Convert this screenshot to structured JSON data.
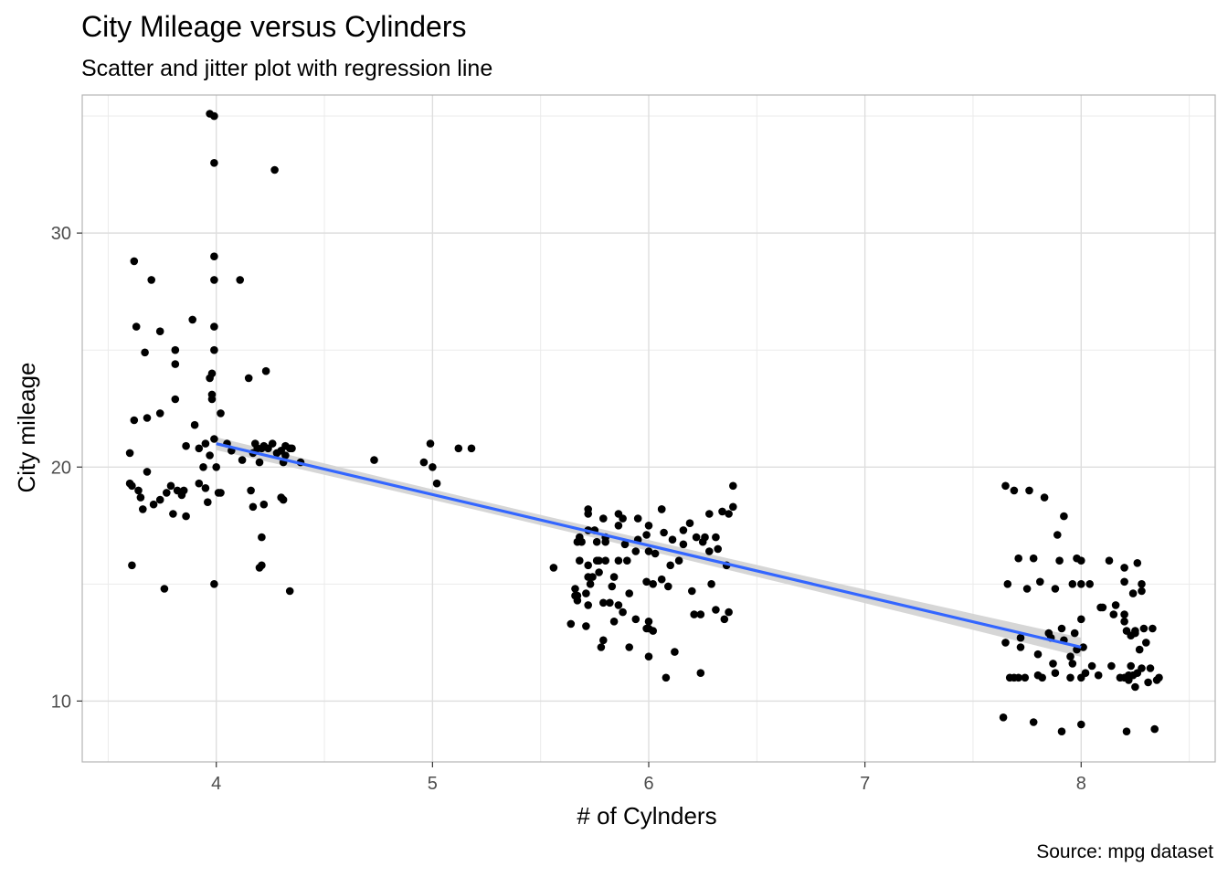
{
  "chart_data": {
    "type": "scatter",
    "title": "City Mileage versus Cylinders",
    "subtitle": "Scatter and jitter plot with regression line",
    "caption": "Source: mpg dataset",
    "xlabel": "# of Cylnders",
    "ylabel": "City mileage",
    "xlim": [
      3.38,
      8.62
    ],
    "ylim": [
      7.4,
      35.9
    ],
    "x_ticks": [
      4,
      5,
      6,
      7,
      8
    ],
    "y_ticks": [
      10,
      20,
      30
    ],
    "grid": true,
    "legend": "none",
    "colors": {
      "points": "#000000",
      "regression_line": "#3366ff",
      "confidence_band": "#d2d2d2",
      "grid": "#ebebeb",
      "panel_border": "#b3b3b3"
    },
    "regression": {
      "x": [
        4,
        8
      ],
      "y": [
        21.0,
        12.3
      ]
    },
    "points": {
      "x": [
        3.97,
        3.99,
        3.99,
        4.27,
        3.62,
        3.7,
        3.99,
        4.11,
        3.99,
        3.74,
        3.89,
        3.63,
        3.99,
        3.67,
        3.99,
        3.81,
        3.81,
        3.98,
        4.23,
        3.97,
        4.15,
        3.68,
        3.81,
        3.74,
        3.98,
        3.98,
        3.62,
        3.9,
        4.02,
        3.6,
        3.6,
        3.61,
        3.64,
        3.65,
        3.66,
        3.68,
        3.82,
        3.85,
        3.79,
        3.95,
        4.0,
        4.07,
        3.92,
        3.86,
        3.94,
        3.99,
        3.95,
        4.05,
        4.18,
        4.21,
        4.17,
        4.19,
        4.22,
        4.24,
        4.26,
        4.28,
        4.3,
        4.32,
        4.34,
        4.31,
        4.12,
        4.16,
        4.2,
        3.97,
        3.74,
        3.77,
        3.84,
        3.96,
        3.92,
        4.01,
        4.02,
        4.17,
        4.22,
        4.31,
        3.8,
        3.86,
        4.3,
        4.2,
        4.21,
        4.34,
        3.61,
        3.76,
        3.99,
        4.21,
        4.35,
        4.39,
        4.32,
        3.71,
        4.73,
        4.96,
        5.0,
        4.99,
        5.12,
        5.18,
        5.02,
        5.67,
        5.68,
        5.72,
        5.75,
        5.8,
        5.86,
        5.88,
        5.95,
        6.0,
        5.72,
        5.79,
        5.86,
        5.73,
        5.77,
        5.72,
        5.77,
        5.86,
        6.06,
        6.16,
        6.19,
        6.22,
        6.26,
        6.28,
        6.34,
        6.37,
        6.39,
        6.39,
        6.31,
        5.68,
        5.72,
        5.74,
        5.83,
        5.91,
        5.99,
        6.09,
        6.02,
        6.06,
        5.76,
        5.8,
        5.9,
        5.94,
        6.0,
        6.03,
        6.1,
        6.14,
        6.28,
        6.32,
        5.66,
        5.71,
        5.82,
        5.86,
        5.69,
        5.76,
        5.8,
        5.89,
        5.95,
        5.99,
        6.07,
        6.11,
        6.16,
        6.25,
        6.29,
        6.36,
        5.56,
        5.66,
        5.72,
        5.79,
        5.88,
        5.94,
        5.99,
        6.02,
        6.21,
        6.2,
        6.24,
        6.37,
        5.64,
        5.71,
        5.79,
        6.0,
        6.08,
        6.12,
        6.24,
        6.35,
        5.67,
        5.84,
        6.0,
        6.31,
        5.67,
        6.0,
        5.78,
        5.91,
        5.84,
        5.72,
        6.06,
        7.65,
        7.69,
        7.76,
        7.83,
        7.89,
        7.92,
        7.98,
        8.04,
        8.09,
        8.16,
        8.2,
        8.25,
        8.29,
        7.65,
        7.72,
        7.8,
        7.86,
        7.92,
        7.97,
        8.0,
        8.1,
        8.15,
        8.2,
        8.24,
        8.28,
        8.33,
        7.72,
        7.85,
        7.91,
        7.95,
        8.01,
        8.05,
        8.14,
        8.22,
        8.28,
        7.69,
        7.8,
        7.87,
        7.96,
        8.02,
        8.2,
        8.24,
        8.26,
        8.32,
        8.36,
        7.71,
        7.74,
        7.82,
        7.88,
        7.95,
        8.0,
        8.08,
        8.18,
        8.22,
        8.25,
        8.31,
        8.35,
        7.67,
        7.75,
        7.81,
        7.88,
        7.96,
        8.0,
        8.2,
        8.28,
        7.66,
        7.71,
        7.78,
        7.9,
        8.0,
        8.13,
        8.2,
        8.26,
        7.64,
        7.78,
        7.91,
        8.0,
        8.21,
        8.34,
        7.98,
        8.3,
        8.23,
        8.23,
        8.27,
        8.25,
        8.21
      ],
      "y": [
        35.1,
        35.0,
        33.0,
        32.7,
        28.8,
        28.0,
        29.0,
        28.0,
        28.0,
        25.8,
        26.3,
        26.0,
        26.0,
        24.9,
        25.0,
        25.0,
        24.4,
        24.0,
        24.1,
        23.8,
        23.8,
        22.1,
        22.9,
        22.3,
        22.9,
        23.1,
        22.0,
        21.8,
        22.3,
        20.6,
        19.3,
        19.2,
        19.0,
        18.7,
        18.2,
        19.8,
        19.0,
        19.0,
        19.2,
        19.1,
        20.0,
        20.7,
        20.8,
        20.9,
        20.0,
        21.2,
        21.0,
        21.0,
        21.0,
        20.8,
        20.6,
        20.8,
        20.9,
        20.8,
        21.0,
        20.6,
        20.7,
        20.9,
        20.8,
        20.2,
        20.3,
        19.0,
        20.2,
        20.5,
        18.6,
        18.9,
        18.8,
        18.5,
        19.3,
        18.9,
        18.9,
        18.3,
        18.4,
        18.6,
        18.0,
        17.9,
        18.7,
        15.7,
        15.8,
        14.7,
        15.8,
        14.8,
        15.0,
        17.0,
        20.8,
        20.2,
        20.5,
        18.4,
        20.3,
        20.2,
        20.0,
        21.0,
        20.8,
        20.8,
        19.3,
        16.8,
        17.0,
        17.3,
        17.3,
        17.0,
        17.5,
        17.8,
        17.8,
        17.5,
        18.2,
        17.8,
        18.0,
        15.0,
        15.5,
        15.3,
        16.0,
        16.0,
        18.2,
        17.3,
        17.6,
        17.0,
        17.0,
        18.0,
        18.1,
        18.0,
        19.2,
        18.3,
        17.0,
        16.0,
        15.8,
        15.3,
        14.9,
        14.6,
        15.1,
        14.9,
        15.0,
        15.2,
        16.0,
        16.0,
        16.0,
        16.4,
        16.4,
        16.3,
        15.8,
        16.0,
        16.4,
        16.5,
        14.8,
        14.6,
        14.2,
        14.1,
        16.8,
        16.8,
        16.8,
        16.7,
        16.9,
        17.1,
        17.2,
        16.9,
        16.7,
        16.8,
        15.0,
        15.8,
        15.7,
        14.5,
        14.1,
        14.2,
        13.8,
        13.5,
        13.1,
        13.0,
        13.7,
        14.7,
        13.7,
        13.8,
        13.3,
        13.2,
        12.6,
        13.1,
        11.0,
        12.1,
        11.2,
        13.5,
        14.5,
        15.3,
        13.4,
        13.9,
        14.3,
        11.9,
        12.3,
        12.3,
        13.4,
        18.0,
        18.2,
        19.2,
        19.0,
        19.0,
        18.7,
        17.1,
        17.9,
        16.1,
        15.0,
        14.0,
        14.1,
        13.7,
        13.0,
        13.1,
        12.5,
        12.3,
        12.0,
        12.7,
        12.6,
        12.9,
        13.5,
        14.0,
        13.7,
        13.4,
        14.6,
        14.7,
        13.1,
        12.7,
        12.9,
        13.1,
        11.9,
        12.3,
        11.5,
        11.5,
        11.1,
        11.4,
        11.0,
        11.1,
        11.6,
        11.6,
        11.2,
        11.0,
        11.1,
        11.2,
        11.4,
        11.0,
        11.0,
        11.0,
        11.0,
        11.2,
        11.0,
        11.0,
        11.1,
        11.0,
        10.9,
        10.6,
        10.8,
        10.9,
        11.0,
        14.8,
        15.1,
        14.8,
        15.0,
        15.0,
        15.1,
        15.0,
        15.0,
        16.1,
        16.1,
        16.0,
        16.0,
        16.0,
        15.7,
        15.9,
        9.3,
        9.1,
        8.7,
        9.0,
        8.7,
        8.8,
        12.2,
        12.5,
        12.8,
        11.5,
        12.2,
        12.9,
        13.0
      ]
    }
  }
}
